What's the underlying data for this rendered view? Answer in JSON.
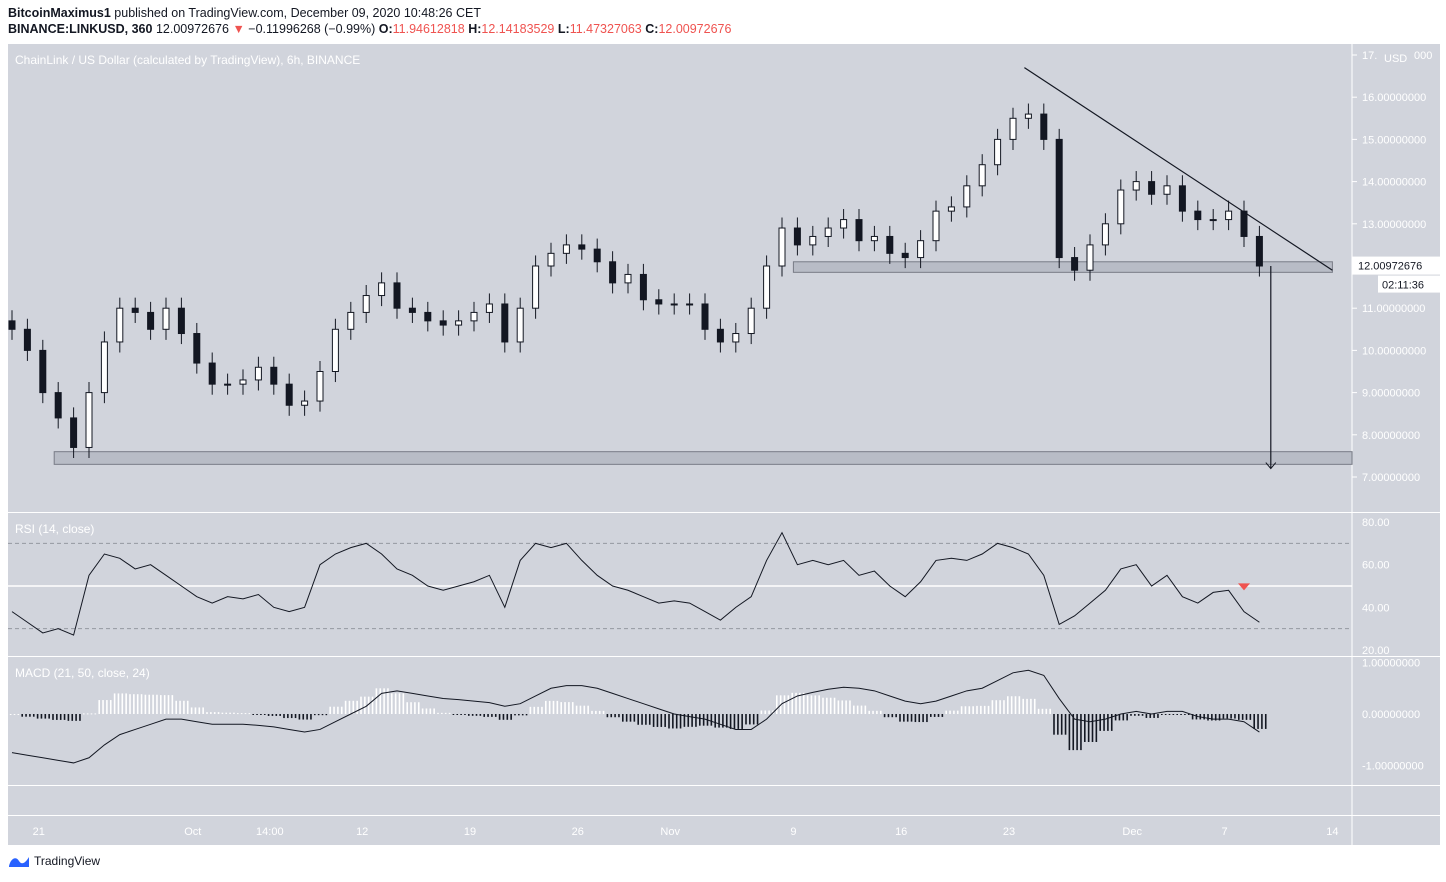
{
  "header": {
    "author": "BitcoinMaximus1",
    "published": "published on TradingView.com, December 09, 2020 10:48:26 CET",
    "symbol": "BINANCE:LINKUSD, 360",
    "last": "12.00972676",
    "change": "−0.11996268 (−0.99%)",
    "o_label": "O:",
    "o": "11.94612818",
    "h_label": "H:",
    "h": "12.14183529",
    "l_label": "L:",
    "l": "11.47327063",
    "c_label": "C:",
    "c": "12.00972676"
  },
  "colors": {
    "background": "#d1d4dc",
    "candle": "#131722",
    "axis_text": "#ffffff",
    "down": "#ef5350",
    "annotation_box": "#b8bcc6"
  },
  "footer": {
    "brand": "TradingView"
  },
  "chart_data": [
    {
      "type": "candlestick",
      "title": "ChainLink / US Dollar (calculated by TradingView), 6h, BINANCE",
      "currency_label": "USD",
      "start_date": "2020-09-19",
      "interval": "1 day (approx. closes of 6h candles)",
      "ylim": [
        7,
        17
      ],
      "y_ticks": [
        "7.00000000",
        "8.00000000",
        "9.00000000",
        "10.00000000",
        "11.00000000",
        "12.00000000",
        "13.00000000",
        "14.00000000",
        "15.00000000",
        "16.00000000",
        "17.00000000"
      ],
      "x_ticks": [
        {
          "label": "21",
          "date": "2020-09-21"
        },
        {
          "label": "Oct",
          "date": "2020-10-01"
        },
        {
          "label": "14:00",
          "date": "2020-10-06"
        },
        {
          "label": "12",
          "date": "2020-10-12"
        },
        {
          "label": "19",
          "date": "2020-10-19"
        },
        {
          "label": "26",
          "date": "2020-10-26"
        },
        {
          "label": "Nov",
          "date": "2020-11-01"
        },
        {
          "label": "9",
          "date": "2020-11-09"
        },
        {
          "label": "16",
          "date": "2020-11-16"
        },
        {
          "label": "23",
          "date": "2020-11-23"
        },
        {
          "label": "Dec",
          "date": "2020-12-01"
        },
        {
          "label": "7",
          "date": "2020-12-07"
        },
        {
          "label": "14",
          "date": "2020-12-14"
        }
      ],
      "closes": [
        10.5,
        10.0,
        9.0,
        8.4,
        7.7,
        9.0,
        10.2,
        11.0,
        10.9,
        10.5,
        11.0,
        10.4,
        9.7,
        9.2,
        9.2,
        9.3,
        9.6,
        9.2,
        8.7,
        8.8,
        9.5,
        10.5,
        10.9,
        11.3,
        11.6,
        11.0,
        10.9,
        10.7,
        10.6,
        10.7,
        10.9,
        11.1,
        10.2,
        11.0,
        12.0,
        12.3,
        12.5,
        12.4,
        12.1,
        11.6,
        11.8,
        11.2,
        11.1,
        11.1,
        11.1,
        10.5,
        10.2,
        10.4,
        11.0,
        12.0,
        12.9,
        12.5,
        12.7,
        12.9,
        13.1,
        12.6,
        12.7,
        12.3,
        12.2,
        12.6,
        13.3,
        13.4,
        13.9,
        14.4,
        15.0,
        15.5,
        15.6,
        15.0,
        12.2,
        11.9,
        12.5,
        13.0,
        13.8,
        14.0,
        13.7,
        13.9,
        13.3,
        13.1,
        13.1,
        13.3,
        12.7,
        12.0
      ],
      "last_price_label": "12.00972676",
      "countdown_label": "02:11:36",
      "annotations": {
        "trendline": {
          "from": {
            "date": "2020-11-24",
            "price": 16.7
          },
          "to": {
            "date": "2020-12-14",
            "price": 11.9
          }
        },
        "support_zones": [
          {
            "from": "2020-11-09",
            "to": "2020-12-14",
            "low": 11.85,
            "high": 12.1
          },
          {
            "from": "2020-09-22",
            "to": "2020-12-18",
            "low": 7.3,
            "high": 7.6
          }
        ],
        "target_arrow": {
          "date": "2020-12-10",
          "from_price": 12.0,
          "to_price": 7.2
        }
      }
    },
    {
      "type": "line",
      "title": "RSI (14, close)",
      "ylim": [
        20,
        80
      ],
      "y_ticks": [
        "20.00",
        "40.00",
        "60.00",
        "80.00"
      ],
      "levels": [
        30,
        50,
        70
      ],
      "values": [
        38,
        33,
        28,
        30,
        27,
        55,
        65,
        63,
        58,
        60,
        55,
        50,
        45,
        42,
        45,
        44,
        46,
        40,
        38,
        40,
        60,
        65,
        68,
        70,
        65,
        58,
        55,
        50,
        48,
        50,
        52,
        55,
        40,
        62,
        70,
        68,
        70,
        62,
        55,
        50,
        48,
        45,
        42,
        43,
        42,
        38,
        34,
        40,
        45,
        62,
        75,
        60,
        62,
        60,
        62,
        55,
        57,
        50,
        45,
        52,
        62,
        63,
        62,
        65,
        70,
        68,
        65,
        55,
        32,
        36,
        42,
        48,
        58,
        60,
        50,
        55,
        45,
        42,
        47,
        48,
        38,
        33
      ],
      "marker": {
        "date": "2020-12-08",
        "value": 55,
        "shape": "down-triangle",
        "color": "#ef5350"
      }
    },
    {
      "type": "line+histogram",
      "title": "MACD (21, 50, close, 24)",
      "ylim": [
        -1.5,
        1.1
      ],
      "y_ticks": [
        "-1.00000000",
        "0.00000000",
        "1.00000000"
      ],
      "macd": [
        -0.75,
        -0.8,
        -0.85,
        -0.9,
        -0.95,
        -0.85,
        -0.6,
        -0.4,
        -0.3,
        -0.2,
        -0.1,
        -0.1,
        -0.15,
        -0.2,
        -0.2,
        -0.2,
        -0.22,
        -0.25,
        -0.3,
        -0.35,
        -0.3,
        -0.15,
        0.0,
        0.15,
        0.4,
        0.45,
        0.4,
        0.35,
        0.3,
        0.28,
        0.25,
        0.22,
        0.15,
        0.2,
        0.35,
        0.5,
        0.55,
        0.55,
        0.5,
        0.4,
        0.3,
        0.2,
        0.1,
        0.0,
        -0.05,
        -0.1,
        -0.2,
        -0.3,
        -0.3,
        -0.1,
        0.2,
        0.35,
        0.42,
        0.48,
        0.52,
        0.5,
        0.45,
        0.35,
        0.25,
        0.2,
        0.25,
        0.35,
        0.45,
        0.5,
        0.65,
        0.8,
        0.85,
        0.75,
        0.3,
        -0.1,
        -0.15,
        -0.1,
        0.0,
        0.05,
        0.0,
        0.05,
        0.05,
        -0.05,
        -0.1,
        -0.1,
        -0.15,
        -0.35
      ]
    }
  ]
}
